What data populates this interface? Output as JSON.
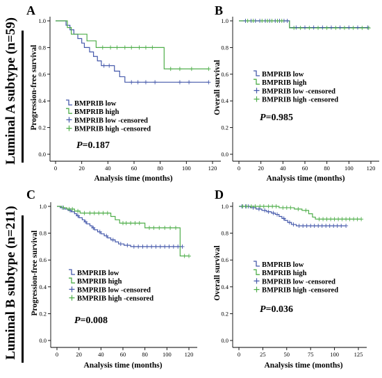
{
  "row_labels": [
    "Luminal A subtype (n=59)",
    "Luminal B subtype (n=211)"
  ],
  "colors": {
    "low": "#4559ab",
    "high": "#4fae4a",
    "axis": "#000000"
  },
  "chart_data": [
    {
      "panel": "A",
      "type": "line",
      "xlabel": "Analysis time (months)",
      "ylabel": "Progression-free survival",
      "xlim": [
        0,
        120
      ],
      "ylim": [
        0,
        1
      ],
      "xticks": [
        0,
        20,
        40,
        60,
        80,
        100,
        120
      ],
      "yticks": [
        0.0,
        0.2,
        0.4,
        0.6,
        0.8,
        1.0
      ],
      "grid": false,
      "legend": "lower-left",
      "series": [
        {
          "name": "BMPRIB low",
          "censored_label": "BMPRIB low -censored",
          "color": "#4559ab",
          "steps": [
            [
              0,
              1.0
            ],
            [
              8,
              0.967
            ],
            [
              11,
              0.933
            ],
            [
              14,
              0.9
            ],
            [
              17,
              0.867
            ],
            [
              20,
              0.833
            ],
            [
              22,
              0.8
            ],
            [
              26,
              0.767
            ],
            [
              29,
              0.733
            ],
            [
              32,
              0.7
            ],
            [
              35,
              0.664
            ],
            [
              45,
              0.623
            ],
            [
              49,
              0.581
            ],
            [
              53,
              0.54
            ]
          ],
          "end": 117,
          "censored": [
            37,
            41,
            58,
            63,
            69,
            76,
            95,
            102,
            117
          ]
        },
        {
          "name": "BMPRIB high",
          "censored_label": "BMPRIB high -censored",
          "color": "#4fae4a",
          "steps": [
            [
              0,
              1.0
            ],
            [
              9,
              0.95
            ],
            [
              12,
              0.9
            ],
            [
              24,
              0.85
            ],
            [
              31,
              0.8
            ],
            [
              83,
              0.64
            ]
          ],
          "end": 117,
          "censored": [
            36,
            42,
            47,
            53,
            58,
            64,
            69,
            74,
            88,
            95,
            104,
            117
          ]
        }
      ],
      "annotation": {
        "label": "P",
        "text": "=0.187"
      }
    },
    {
      "panel": "B",
      "type": "line",
      "xlabel": "Analysis time (months)",
      "ylabel": "Overall survival",
      "xlim": [
        0,
        120
      ],
      "ylim": [
        0,
        1
      ],
      "xticks": [
        0,
        20,
        40,
        60,
        80,
        100,
        120
      ],
      "yticks": [
        0.0,
        0.2,
        0.4,
        0.6,
        0.8,
        1.0
      ],
      "grid": false,
      "legend": "center-left",
      "series": [
        {
          "name": "BMPRIB low",
          "censored_label": "BMPRIB low -censored",
          "color": "#4559ab",
          "steps": [
            [
              0,
              1.0
            ],
            [
              46,
              0.95
            ]
          ],
          "end": 117,
          "censored": [
            6,
            11,
            15,
            19,
            24,
            28,
            33,
            37,
            41,
            44,
            52,
            60,
            68,
            76,
            84,
            92,
            100,
            108,
            117
          ]
        },
        {
          "name": "BMPRIB high",
          "censored_label": "BMPRIB high -censored",
          "color": "#4fae4a",
          "steps": [
            [
              0,
              1.0
            ],
            [
              46,
              0.947
            ]
          ],
          "end": 118,
          "censored": [
            8,
            13,
            21,
            26,
            30,
            35,
            39,
            50,
            56,
            64,
            72,
            80,
            88,
            96,
            104,
            112,
            118
          ]
        }
      ],
      "annotation": {
        "label": "P",
        "text": "=0.985"
      }
    },
    {
      "panel": "C",
      "type": "line",
      "xlabel": "Analysis time (months)",
      "ylabel": "Progression-free survival",
      "xlim": [
        0,
        120
      ],
      "ylim": [
        0,
        1
      ],
      "xticks": [
        0,
        20,
        40,
        60,
        80,
        100,
        120
      ],
      "yticks": [
        0.0,
        0.2,
        0.4,
        0.6,
        0.8,
        1.0
      ],
      "grid": false,
      "legend": "center-left",
      "series": [
        {
          "name": "BMPRIB low",
          "censored_label": "BMPRIB low -censored",
          "color": "#4559ab",
          "steps": [
            [
              0,
              1.0
            ],
            [
              3,
              0.99
            ],
            [
              7,
              0.98
            ],
            [
              10,
              0.97
            ],
            [
              13,
              0.96
            ],
            [
              16,
              0.945
            ],
            [
              18,
              0.93
            ],
            [
              20,
              0.915
            ],
            [
              23,
              0.9
            ],
            [
              25,
              0.885
            ],
            [
              27,
              0.87
            ],
            [
              30,
              0.855
            ],
            [
              32,
              0.84
            ],
            [
              34,
              0.825
            ],
            [
              37,
              0.81
            ],
            [
              40,
              0.795
            ],
            [
              43,
              0.78
            ],
            [
              46,
              0.765
            ],
            [
              49,
              0.75
            ],
            [
              53,
              0.735
            ],
            [
              56,
              0.72
            ],
            [
              61,
              0.71
            ],
            [
              67,
              0.7
            ]
          ],
          "end": 114,
          "censored": [
            5,
            12,
            19,
            26,
            33,
            39,
            45,
            51,
            58,
            64,
            70,
            74,
            78,
            82,
            86,
            90,
            94,
            98,
            102,
            106,
            110,
            114
          ]
        },
        {
          "name": "BMPRIB high",
          "censored_label": "BMPRIB high -censored",
          "color": "#4fae4a",
          "steps": [
            [
              0,
              1.0
            ],
            [
              4,
              0.99
            ],
            [
              9,
              0.98
            ],
            [
              16,
              0.965
            ],
            [
              21,
              0.95
            ],
            [
              49,
              0.925
            ],
            [
              53,
              0.9
            ],
            [
              57,
              0.875
            ],
            [
              80,
              0.84
            ],
            [
              112,
              0.63
            ]
          ],
          "end": 120,
          "censored": [
            6,
            11,
            14,
            19,
            25,
            30,
            34,
            38,
            42,
            46,
            60,
            63,
            67,
            71,
            75,
            84,
            88,
            93,
            98,
            103,
            108,
            116,
            120
          ]
        }
      ],
      "annotation": {
        "label": "P",
        "text": "=0.008"
      }
    },
    {
      "panel": "D",
      "type": "line",
      "xlabel": "Analysis time (months)",
      "ylabel": "Overall survival",
      "xlim": [
        0,
        125
      ],
      "ylim": [
        0,
        1
      ],
      "xticks": [
        0,
        25,
        50,
        75,
        100,
        125
      ],
      "yticks": [
        0.0,
        0.2,
        0.4,
        0.6,
        0.8,
        1.0
      ],
      "grid": false,
      "legend": "center-left",
      "series": [
        {
          "name": "BMPRIB low",
          "censored_label": "BMPRIB low -censored",
          "color": "#4559ab",
          "steps": [
            [
              0,
              1.0
            ],
            [
              12,
              0.99
            ],
            [
              18,
              0.98
            ],
            [
              24,
              0.97
            ],
            [
              29,
              0.96
            ],
            [
              34,
              0.95
            ],
            [
              38,
              0.94
            ],
            [
              42,
              0.925
            ],
            [
              45,
              0.91
            ],
            [
              48,
              0.895
            ],
            [
              51,
              0.88
            ],
            [
              55,
              0.865
            ],
            [
              60,
              0.855
            ]
          ],
          "end": 112,
          "censored": [
            3,
            7,
            10,
            15,
            21,
            27,
            31,
            36,
            40,
            47,
            53,
            57,
            63,
            67,
            71,
            75,
            79,
            83,
            87,
            91,
            95,
            99,
            103,
            107,
            112
          ]
        },
        {
          "name": "BMPRIB high",
          "censored_label": "BMPRIB high -censored",
          "color": "#4fae4a",
          "steps": [
            [
              0,
              1.0
            ],
            [
              42,
              0.99
            ],
            [
              58,
              0.98
            ],
            [
              66,
              0.97
            ],
            [
              73,
              0.945
            ],
            [
              77,
              0.92
            ],
            [
              80,
              0.905
            ]
          ],
          "end": 128,
          "censored": [
            4,
            8,
            13,
            17,
            22,
            26,
            31,
            35,
            39,
            46,
            50,
            54,
            62,
            70,
            84,
            88,
            92,
            96,
            100,
            104,
            108,
            112,
            116,
            120,
            124,
            128
          ]
        }
      ],
      "annotation": {
        "label": "P",
        "text": "=0.036"
      }
    }
  ]
}
